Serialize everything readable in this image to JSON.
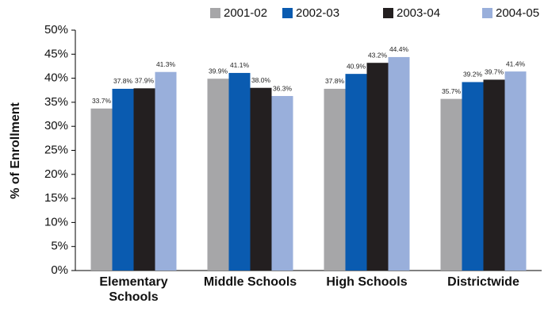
{
  "chart_data": {
    "type": "bar",
    "y_label": "% of Enrollment",
    "categories": [
      "Elementary Schools",
      "Middle Schools",
      "High Schools",
      "Districtwide"
    ],
    "series": [
      {
        "name": "2001-02",
        "color": "#a6a6a8",
        "values": [
          33.7,
          39.9,
          37.8,
          35.7
        ],
        "value_labels": [
          "33.7%",
          "39.9%",
          "37.8%",
          "35.7%"
        ]
      },
      {
        "name": "2002-03",
        "color": "#0a5bb0",
        "values": [
          37.8,
          41.1,
          40.9,
          39.2
        ],
        "value_labels": [
          "37.8%",
          "41.1%",
          "40.9%",
          "39.2%"
        ]
      },
      {
        "name": "2003-04",
        "color": "#231f20",
        "values": [
          37.9,
          38.0,
          43.2,
          39.7
        ],
        "value_labels": [
          "37.9%",
          "38.0%",
          "43.2%",
          "39.7%"
        ]
      },
      {
        "name": "2004-05",
        "color": "#99afdb",
        "values": [
          41.3,
          36.3,
          44.4,
          41.4
        ],
        "value_labels": [
          "41.3%",
          "36.3%",
          "44.4%",
          "41.4%"
        ]
      }
    ],
    "ylim": [
      0,
      50
    ],
    "yticks": [
      {
        "value": 0,
        "label": "0%"
      },
      {
        "value": 5,
        "label": "5%"
      },
      {
        "value": 10,
        "label": "10%"
      },
      {
        "value": 15,
        "label": "15%"
      },
      {
        "value": 20,
        "label": "20%"
      },
      {
        "value": 25,
        "label": "25%"
      },
      {
        "value": 30,
        "label": "30%"
      },
      {
        "value": 35,
        "label": "35%"
      },
      {
        "value": 40,
        "label": "40%"
      },
      {
        "value": 45,
        "label": "45%"
      },
      {
        "value": 50,
        "label": "50%"
      }
    ],
    "legend": "top"
  }
}
